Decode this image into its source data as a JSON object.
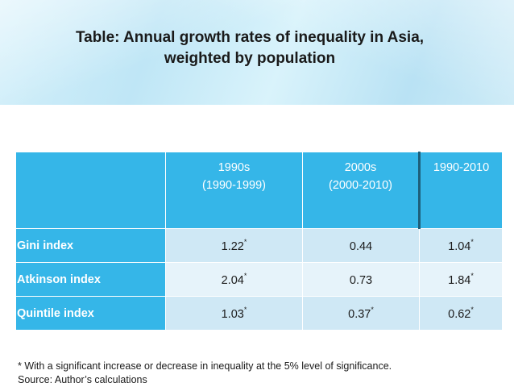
{
  "title": {
    "line1": "Table: Annual growth rates of inequality in Asia,",
    "line2": "weighted by population"
  },
  "table": {
    "columns": [
      {
        "line1": "1990s",
        "line2": "(1990-1999)"
      },
      {
        "line1": "2000s",
        "line2": "(2000-2010)"
      },
      {
        "line1": "1990-2010",
        "line2": ""
      }
    ],
    "rows": [
      {
        "label": "Gini index",
        "cells": [
          {
            "value": "1.22",
            "mark": "*"
          },
          {
            "value": "0.44",
            "mark": ""
          },
          {
            "value": "1.04",
            "mark": "*"
          }
        ]
      },
      {
        "label": "Atkinson index",
        "cells": [
          {
            "value": "2.04",
            "mark": "*"
          },
          {
            "value": "0.73",
            "mark": ""
          },
          {
            "value": "1.84",
            "mark": "*"
          }
        ]
      },
      {
        "label": "Quintile index",
        "cells": [
          {
            "value": "1.03",
            "mark": "*"
          },
          {
            "value": "0.37",
            "mark": "*"
          },
          {
            "value": "0.62",
            "mark": "*"
          }
        ]
      }
    ]
  },
  "footnote": {
    "note": "* With a significant increase or decrease in inequality at the 5% level of significance.",
    "source": "Source: Author’s calculations"
  },
  "colors": {
    "header_fill": "#35b6e8",
    "row_fill_odd": "#cfe8f5",
    "row_fill_even": "#e6f3fa",
    "band_fill": "#c9ebf8"
  }
}
